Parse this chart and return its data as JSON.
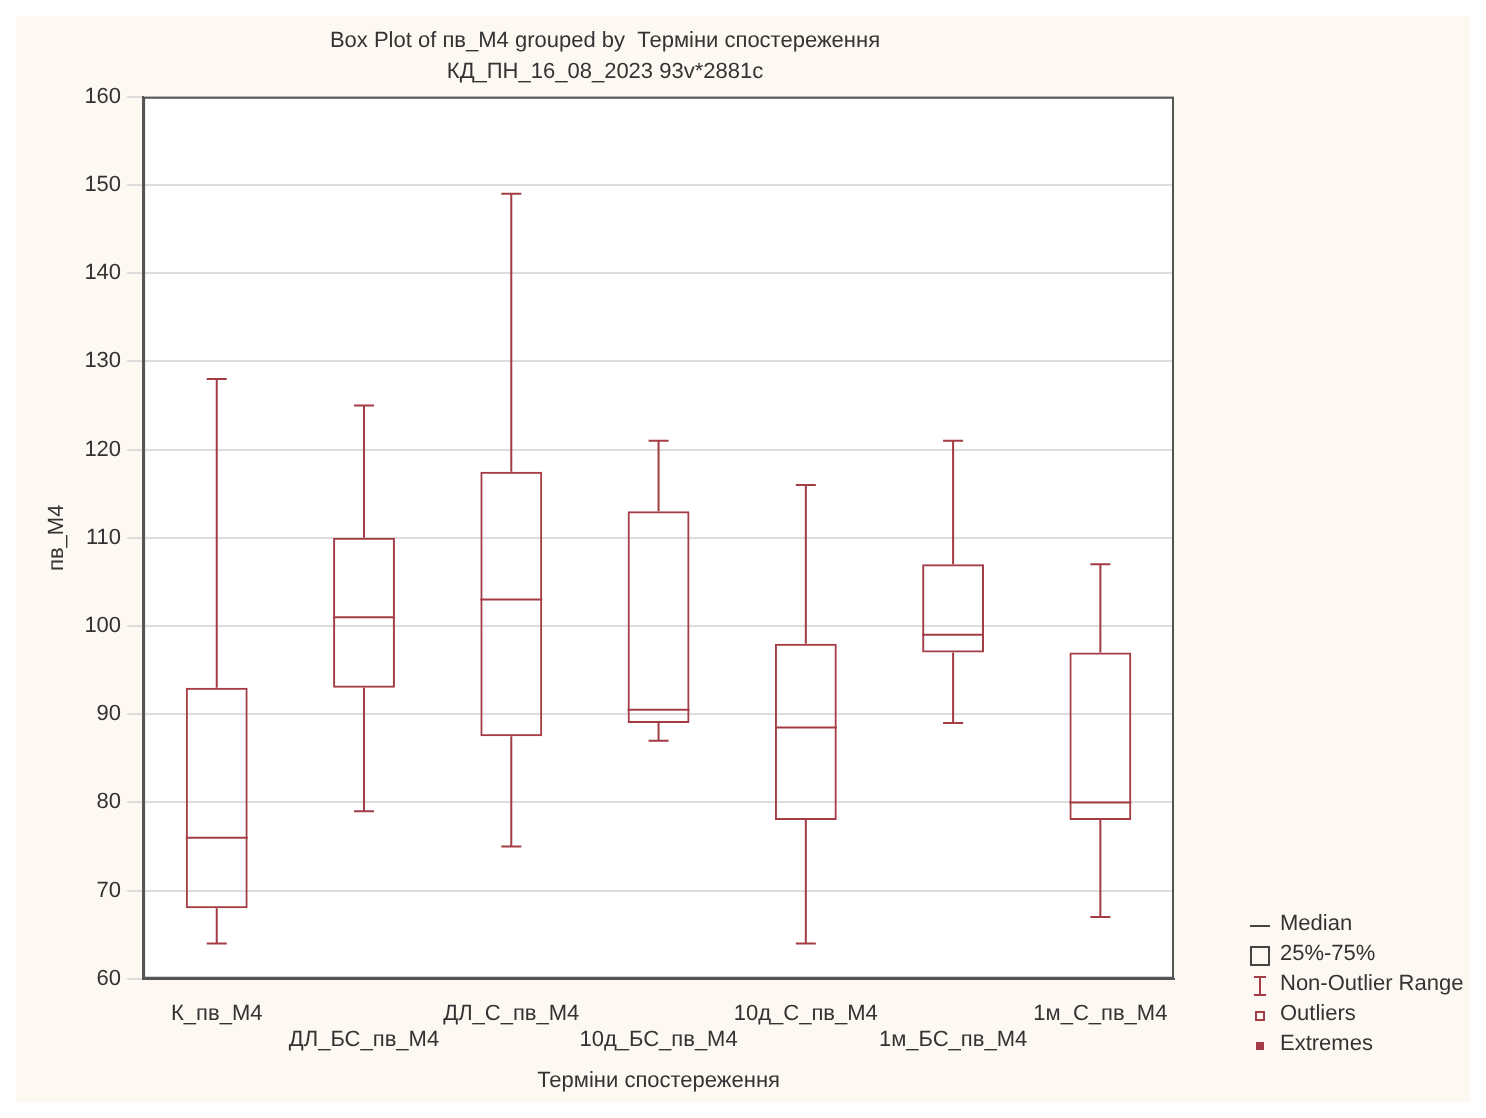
{
  "chart_data": {
    "type": "box",
    "title": "Box Plot of пв_M4 grouped by  Терміни спостереження",
    "subtitle": "КД_ПН_16_08_2023 93v*2881c",
    "xlabel": "Терміни спостереження",
    "ylabel": "пв_M4",
    "categories": [
      "К_пв_M4",
      "ДЛ_БС_пв_M4",
      "ДЛ_С_пв_M4",
      "10д_БС_пв_M4",
      "10д_С_пв_M4",
      "1м_БС_пв_M4",
      "1м_С_пв_M4"
    ],
    "series": [
      {
        "color": "#a33c44",
        "boxes": [
          {
            "low": 64,
            "q1": 68,
            "median": 76,
            "q3": 93,
            "high": 128
          },
          {
            "low": 79,
            "q1": 93,
            "median": 101,
            "q3": 110,
            "high": 125
          },
          {
            "low": 75,
            "q1": 87.5,
            "median": 103,
            "q3": 117.5,
            "high": 149
          },
          {
            "low": 87,
            "q1": 89,
            "median": 90.5,
            "q3": 113,
            "high": 121
          },
          {
            "low": 64,
            "q1": 78,
            "median": 88.5,
            "q3": 98,
            "high": 116
          },
          {
            "low": 89,
            "q1": 97,
            "median": 99,
            "q3": 107,
            "high": 121
          },
          {
            "low": 67,
            "q1": 78,
            "median": 80,
            "q3": 97,
            "high": 107
          }
        ]
      }
    ],
    "ylim": [
      60,
      160
    ],
    "yticks": [
      60,
      70,
      80,
      90,
      100,
      110,
      120,
      130,
      140,
      150,
      160
    ],
    "grid": "y",
    "annotations": [
      "Median",
      "25%-75%",
      "Non-Outlier Range",
      "Outliers",
      "Extremes"
    ]
  }
}
